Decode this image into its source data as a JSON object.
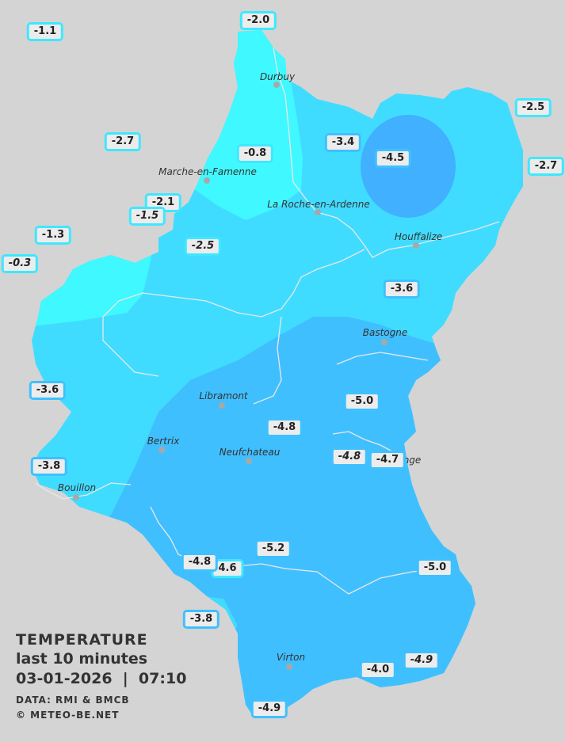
{
  "legend": {
    "title": "TEMPERATURE",
    "period": "last 10 minutes",
    "datetime": "03-01-2026  |  07:10",
    "source": "DATA: RMI & BMCB",
    "copyright": "© METEO-BE.NET"
  },
  "colors": {
    "background": "#d4d4d4",
    "zone_warmest": "#40f8ff",
    "zone_mid": "#40dcff",
    "zone_cold": "#40bfff",
    "zone_coldest": "#40b0ff",
    "label_border_warm": "#3ee8ff",
    "label_border_cold": "#3fc0ff"
  },
  "cities": [
    {
      "name": "Durbuy"
    },
    {
      "name": "Marche-en-Famenne"
    },
    {
      "name": "La Roche-en-Ardenne"
    },
    {
      "name": "Houffalize"
    },
    {
      "name": "Bastogne"
    },
    {
      "name": "Libramont"
    },
    {
      "name": "Bertrix"
    },
    {
      "name": "Neufchateau"
    },
    {
      "name": "Bouillon"
    },
    {
      "name": "Virton"
    },
    {
      "name": "nge"
    }
  ],
  "stations": [
    {
      "value": "-1.1",
      "italic": false
    },
    {
      "value": "-2.0",
      "italic": false
    },
    {
      "value": "-2.5",
      "italic": false
    },
    {
      "value": "-2.7",
      "italic": false
    },
    {
      "value": "-2.7",
      "italic": false
    },
    {
      "value": "-0.8",
      "italic": false
    },
    {
      "value": "-3.4",
      "italic": false
    },
    {
      "value": "-4.5",
      "italic": false
    },
    {
      "value": "-2.1",
      "italic": false
    },
    {
      "value": "-1.5",
      "italic": true
    },
    {
      "value": "-1.3",
      "italic": false
    },
    {
      "value": "-0.3",
      "italic": true
    },
    {
      "value": "-2.5",
      "italic": true
    },
    {
      "value": "-3.6",
      "italic": false
    },
    {
      "value": "-3.6",
      "italic": false
    },
    {
      "value": "-5.0",
      "italic": false
    },
    {
      "value": "-4.8",
      "italic": false
    },
    {
      "value": "-4.8",
      "italic": true
    },
    {
      "value": "-4.7",
      "italic": false
    },
    {
      "value": "-3.8",
      "italic": false
    },
    {
      "value": "-5.2",
      "italic": false
    },
    {
      "value": "4.6",
      "italic": false
    },
    {
      "value": "-4.8",
      "italic": false
    },
    {
      "value": "-5.0",
      "italic": false
    },
    {
      "value": "-3.8",
      "italic": false
    },
    {
      "value": "-4.0",
      "italic": false
    },
    {
      "value": "-4.9",
      "italic": true
    },
    {
      "value": "-4.9",
      "italic": false
    }
  ]
}
